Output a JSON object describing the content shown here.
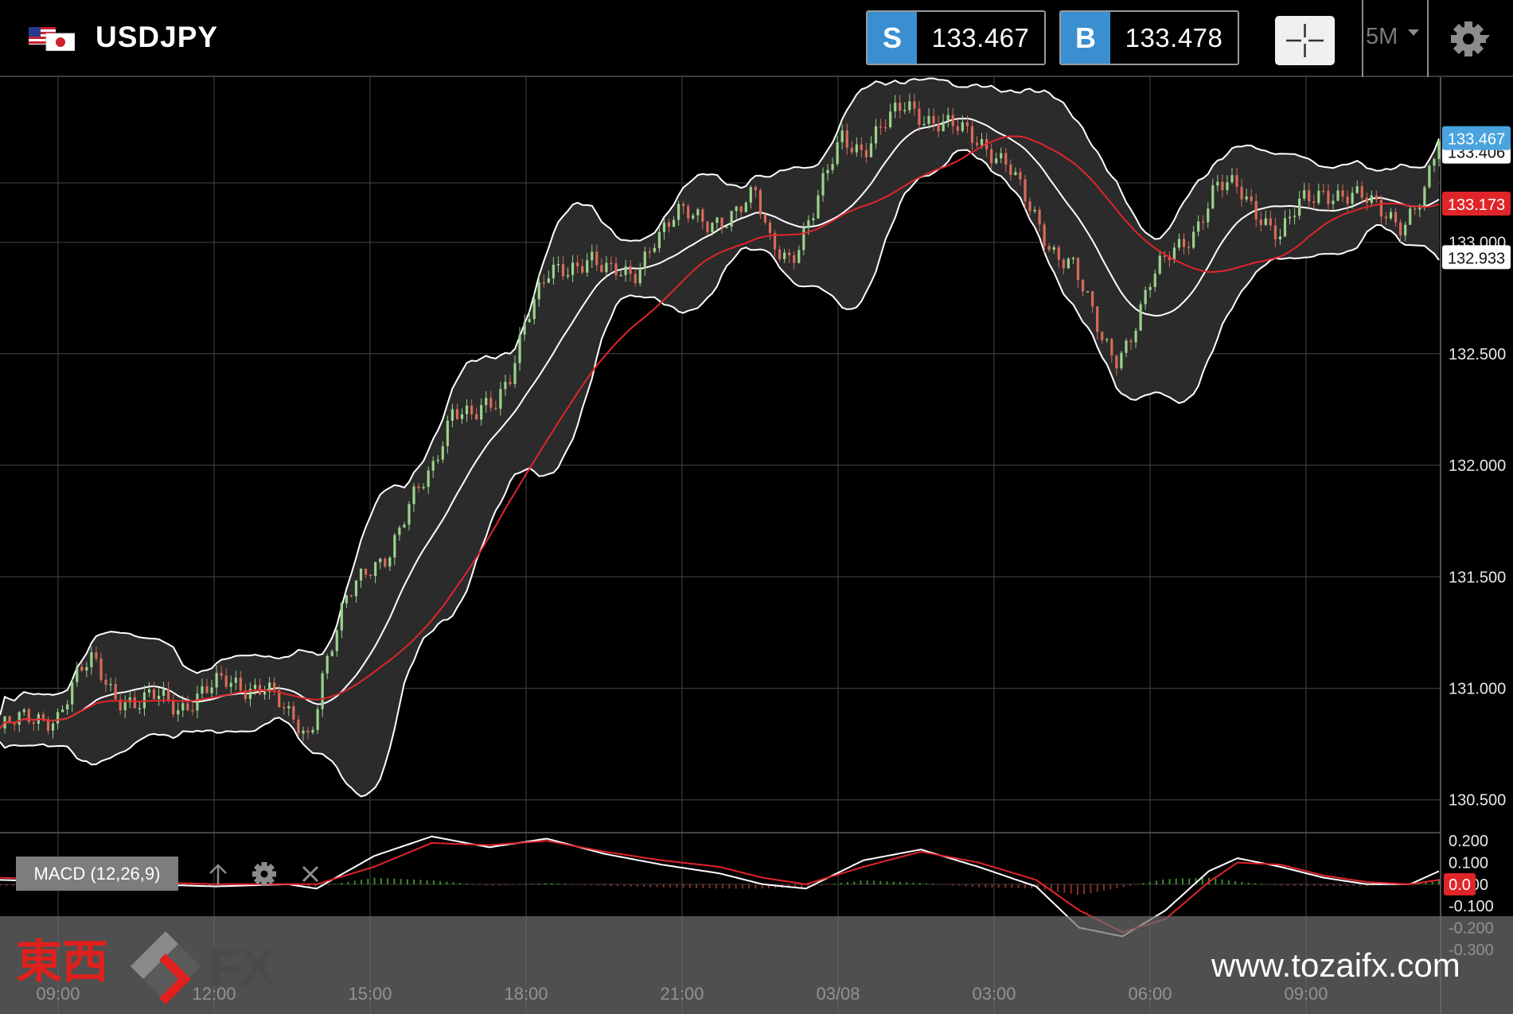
{
  "header": {
    "symbol": "USDJPY",
    "flag_icon": "us-jp-flag-icon",
    "sell": {
      "badge": "S",
      "price": "133.467"
    },
    "buy": {
      "badge": "B",
      "price": "133.478"
    },
    "crosshair_icon": "crosshair-icon",
    "timeframe": "5M",
    "timeframe_icon": "caret-down-icon",
    "settings_icon": "gear-icon"
  },
  "colors": {
    "background": "#000000",
    "up_candle": "#9bd28c",
    "down_candle": "#d96a5a",
    "bollinger_band": "#ffffff",
    "band_fill": "#2b2b2b",
    "moving_average": "#e0252a",
    "macd_line": "#ffffff",
    "signal_line": "#e0252a",
    "sell_badge": "#3a8fd0",
    "current_price_tag": "#4aa3df",
    "ma_price_tag": "#e0252a"
  },
  "chart_data": {
    "type": "candlestick",
    "symbol": "USDJPY",
    "timeframe": "5M",
    "y_axis_ticks": [
      "131.000",
      "131.500",
      "132.000",
      "132.500",
      "133.000",
      "130.500"
    ],
    "y_tick_values": [
      131.0,
      131.5,
      132.0,
      132.5,
      133.0,
      130.5
    ],
    "ylim": [
      130.36,
      133.74
    ],
    "x_axis_ticks": [
      "09:00",
      "12:00",
      "15:00",
      "18:00",
      "21:00",
      "03/08",
      "03:00",
      "06:00",
      "09:00"
    ],
    "price_tags": [
      {
        "label": "133.467",
        "value": 133.467,
        "kind": "current"
      },
      {
        "label": "133.406",
        "value": 133.406,
        "kind": "hidden"
      },
      {
        "label": "133.173",
        "value": 133.173,
        "kind": "moving-average"
      },
      {
        "label": "132.933",
        "value": 132.933,
        "kind": "lower-band"
      }
    ],
    "price_path": [
      [
        0,
        130.82
      ],
      [
        0.02,
        130.86
      ],
      [
        0.04,
        130.88
      ],
      [
        0.055,
        131.06
      ],
      [
        0.065,
        131.12
      ],
      [
        0.08,
        130.98
      ],
      [
        0.095,
        130.92
      ],
      [
        0.11,
        130.96
      ],
      [
        0.125,
        130.92
      ],
      [
        0.14,
        130.98
      ],
      [
        0.155,
        131.02
      ],
      [
        0.17,
        131.01
      ],
      [
        0.185,
        131.02
      ],
      [
        0.2,
        130.86
      ],
      [
        0.215,
        130.78
      ],
      [
        0.225,
        131.1
      ],
      [
        0.24,
        131.38
      ],
      [
        0.255,
        131.52
      ],
      [
        0.27,
        131.62
      ],
      [
        0.285,
        131.82
      ],
      [
        0.3,
        131.96
      ],
      [
        0.315,
        132.28
      ],
      [
        0.33,
        132.22
      ],
      [
        0.345,
        132.26
      ],
      [
        0.355,
        132.42
      ],
      [
        0.365,
        132.68
      ],
      [
        0.38,
        132.84
      ],
      [
        0.395,
        132.86
      ],
      [
        0.41,
        132.96
      ],
      [
        0.425,
        132.86
      ],
      [
        0.44,
        132.82
      ],
      [
        0.455,
        133.04
      ],
      [
        0.47,
        133.13
      ],
      [
        0.49,
        133.08
      ],
      [
        0.51,
        133.14
      ],
      [
        0.525,
        133.2
      ],
      [
        0.535,
        133.0
      ],
      [
        0.55,
        132.94
      ],
      [
        0.565,
        133.12
      ],
      [
        0.585,
        133.48
      ],
      [
        0.6,
        133.42
      ],
      [
        0.615,
        133.52
      ],
      [
        0.63,
        133.62
      ],
      [
        0.645,
        133.56
      ],
      [
        0.665,
        133.5
      ],
      [
        0.685,
        133.44
      ],
      [
        0.7,
        133.36
      ],
      [
        0.715,
        133.14
      ],
      [
        0.73,
        132.98
      ],
      [
        0.745,
        132.92
      ],
      [
        0.755,
        132.74
      ],
      [
        0.765,
        132.56
      ],
      [
        0.775,
        132.48
      ],
      [
        0.785,
        132.58
      ],
      [
        0.8,
        132.82
      ],
      [
        0.815,
        132.96
      ],
      [
        0.83,
        133.06
      ],
      [
        0.845,
        133.24
      ],
      [
        0.86,
        133.24
      ],
      [
        0.875,
        133.14
      ],
      [
        0.89,
        133.02
      ],
      [
        0.905,
        133.18
      ],
      [
        0.92,
        133.24
      ],
      [
        0.935,
        133.2
      ],
      [
        0.95,
        133.18
      ],
      [
        0.965,
        133.14
      ],
      [
        0.975,
        133.08
      ],
      [
        0.99,
        133.2
      ],
      [
        1.0,
        133.46
      ]
    ],
    "macd": {
      "label": "MACD (12,26,9)",
      "y_axis_ticks": [
        "0.200",
        "0.100",
        "0.000",
        "-0.100",
        "-0.200",
        "-0.300"
      ],
      "y_tick_values": [
        0.2,
        0.1,
        0.0,
        -0.1,
        -0.2,
        -0.3
      ],
      "ylim": [
        -0.33,
        0.23
      ],
      "current_tag": "0.0",
      "macd_path": [
        [
          0,
          0.02
        ],
        [
          0.05,
          0.01
        ],
        [
          0.1,
          0.0
        ],
        [
          0.15,
          -0.01
        ],
        [
          0.2,
          0.0
        ],
        [
          0.22,
          -0.02
        ],
        [
          0.26,
          0.13
        ],
        [
          0.3,
          0.22
        ],
        [
          0.34,
          0.17
        ],
        [
          0.38,
          0.21
        ],
        [
          0.42,
          0.14
        ],
        [
          0.46,
          0.09
        ],
        [
          0.5,
          0.05
        ],
        [
          0.53,
          0.0
        ],
        [
          0.56,
          -0.02
        ],
        [
          0.6,
          0.11
        ],
        [
          0.64,
          0.16
        ],
        [
          0.68,
          0.08
        ],
        [
          0.72,
          -0.01
        ],
        [
          0.75,
          -0.2
        ],
        [
          0.78,
          -0.24
        ],
        [
          0.81,
          -0.12
        ],
        [
          0.84,
          0.06
        ],
        [
          0.86,
          0.12
        ],
        [
          0.89,
          0.08
        ],
        [
          0.92,
          0.03
        ],
        [
          0.95,
          0.0
        ],
        [
          0.98,
          0.0
        ],
        [
          1.0,
          0.06
        ]
      ],
      "signal_path": [
        [
          0,
          0.03
        ],
        [
          0.05,
          0.02
        ],
        [
          0.1,
          0.01
        ],
        [
          0.15,
          0.0
        ],
        [
          0.2,
          0.0
        ],
        [
          0.22,
          0.0
        ],
        [
          0.26,
          0.08
        ],
        [
          0.3,
          0.19
        ],
        [
          0.34,
          0.18
        ],
        [
          0.38,
          0.2
        ],
        [
          0.42,
          0.15
        ],
        [
          0.46,
          0.11
        ],
        [
          0.5,
          0.08
        ],
        [
          0.53,
          0.03
        ],
        [
          0.56,
          0.0
        ],
        [
          0.6,
          0.08
        ],
        [
          0.64,
          0.15
        ],
        [
          0.68,
          0.1
        ],
        [
          0.72,
          0.02
        ],
        [
          0.75,
          -0.12
        ],
        [
          0.78,
          -0.22
        ],
        [
          0.81,
          -0.16
        ],
        [
          0.84,
          0.01
        ],
        [
          0.86,
          0.1
        ],
        [
          0.89,
          0.09
        ],
        [
          0.92,
          0.04
        ],
        [
          0.95,
          0.01
        ],
        [
          0.98,
          0.0
        ],
        [
          1.0,
          0.02
        ]
      ]
    }
  },
  "macd_toolbar": {
    "label": "MACD (12,26,9)",
    "move_up_icon": "arrow-up-icon",
    "settings_icon": "gear-icon",
    "close_icon": "close-icon"
  },
  "watermark": {
    "logo_text": "東西",
    "logo_fx": "FX",
    "url": "www.tozaifx.com"
  }
}
